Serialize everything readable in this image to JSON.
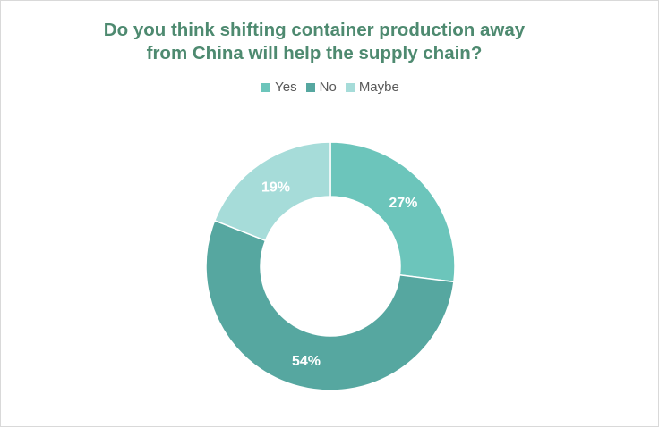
{
  "chart_data": {
    "type": "pie",
    "title": "Do you think shifting container production away\nfrom China will help the supply chain?",
    "categories": [
      "Yes",
      "No",
      "Maybe"
    ],
    "values": [
      27,
      54,
      19
    ],
    "labels": [
      "27%",
      "54%",
      "19%"
    ],
    "colors": [
      "#6cc5bb",
      "#56a7a0",
      "#a6dcd9"
    ],
    "legend_position": "top"
  }
}
